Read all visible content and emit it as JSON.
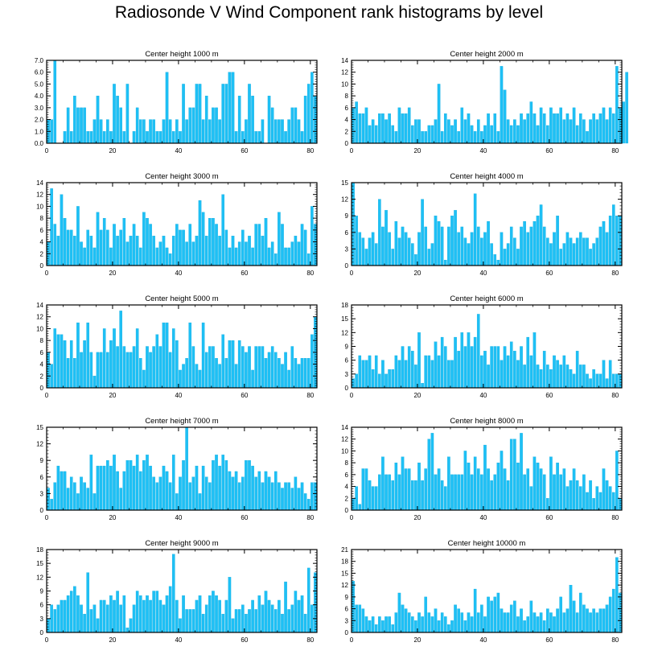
{
  "title": "Radiosonde V Wind Component rank histograms by level",
  "colors": {
    "bar": "#1ec0f5",
    "bar_edge": "#0aa8dc",
    "axis": "#000000"
  },
  "chart_data": [
    {
      "type": "bar",
      "title": "Center height 1000 m",
      "xlim": [
        0,
        82
      ],
      "ylim": [
        0,
        7
      ],
      "xticks": [
        0,
        20,
        40,
        60,
        80
      ],
      "xtick_labels": [
        "0",
        "20",
        "40",
        "60",
        "80"
      ],
      "yticks": [
        0,
        1,
        2,
        3,
        4,
        5,
        6,
        7
      ],
      "ytick_labels": [
        "0.0",
        "1.0",
        "2.0",
        "3.0",
        "4.0",
        "5.0",
        "6.0",
        "7.0"
      ],
      "values": [
        2,
        2,
        7,
        0,
        0,
        1,
        3,
        1,
        4,
        3,
        3,
        3,
        1,
        1,
        2,
        4,
        2,
        1,
        2,
        1,
        5,
        4,
        3,
        1,
        5,
        0,
        1,
        3,
        2,
        2,
        1,
        2,
        2,
        1,
        1,
        2,
        6,
        2,
        1,
        2,
        1,
        5,
        2,
        3,
        3,
        5,
        5,
        2,
        4,
        2,
        3,
        3,
        2,
        5,
        5,
        6,
        6,
        1,
        4,
        1,
        2,
        5,
        4,
        1,
        1,
        2,
        0,
        4,
        3,
        2,
        2,
        2,
        1,
        2,
        3,
        3,
        2,
        1,
        4,
        5,
        6,
        4
      ]
    },
    {
      "type": "bar",
      "title": "Center height 2000 m",
      "xlim": [
        0,
        82
      ],
      "ylim": [
        0,
        14
      ],
      "xticks": [
        0,
        20,
        40,
        60,
        80
      ],
      "xtick_labels": [
        "0",
        "20",
        "40",
        "60",
        "80"
      ],
      "yticks": [
        0,
        2,
        4,
        6,
        8,
        10,
        12,
        14
      ],
      "ytick_labels": [
        "0",
        "2",
        "4",
        "6",
        "8",
        "10",
        "12",
        "14"
      ],
      "values": [
        6,
        7,
        5,
        5,
        6,
        3,
        4,
        3,
        5,
        5,
        4,
        5,
        3,
        2,
        6,
        5,
        5,
        6,
        3,
        4,
        4,
        2,
        2,
        3,
        3,
        4,
        10,
        2,
        5,
        4,
        3,
        4,
        2,
        6,
        4,
        5,
        3,
        2,
        4,
        2,
        3,
        5,
        3,
        5,
        2,
        13,
        9,
        4,
        3,
        4,
        3,
        5,
        4,
        5,
        7,
        5,
        3,
        6,
        5,
        3,
        6,
        5,
        5,
        6,
        4,
        5,
        4,
        6,
        3,
        5,
        4,
        2,
        4,
        5,
        4,
        5,
        6,
        4,
        6,
        5,
        13,
        6,
        7,
        12
      ]
    },
    {
      "type": "bar",
      "title": "Center height 3000 m",
      "xlim": [
        0,
        82
      ],
      "ylim": [
        0,
        14
      ],
      "xticks": [
        0,
        20,
        40,
        60,
        80
      ],
      "xtick_labels": [
        "0",
        "20",
        "40",
        "60",
        "80"
      ],
      "yticks": [
        0,
        2,
        4,
        6,
        8,
        10,
        12,
        14
      ],
      "ytick_labels": [
        "0",
        "2",
        "4",
        "6",
        "8",
        "10",
        "12",
        "14"
      ],
      "values": [
        4,
        13,
        7,
        5,
        12,
        8,
        6,
        6,
        5,
        10,
        4,
        3,
        6,
        5,
        3,
        9,
        6,
        8,
        6,
        3,
        7,
        5,
        6,
        8,
        4,
        5,
        7,
        5,
        3,
        9,
        8,
        7,
        5,
        3,
        4,
        5,
        3,
        2,
        5,
        7,
        6,
        6,
        4,
        7,
        4,
        5,
        11,
        9,
        5,
        8,
        8,
        7,
        5,
        12,
        6,
        3,
        5,
        3,
        4,
        6,
        4,
        5,
        3,
        7,
        7,
        5,
        8,
        3,
        4,
        2,
        9,
        7,
        3,
        3,
        4,
        5,
        4,
        7,
        6,
        2,
        10,
        7
      ]
    },
    {
      "type": "bar",
      "title": "Center height 4000 m",
      "xlim": [
        0,
        82
      ],
      "ylim": [
        0,
        15
      ],
      "xticks": [
        0,
        20,
        40,
        60,
        80
      ],
      "xtick_labels": [
        "0",
        "20",
        "40",
        "60",
        "80"
      ],
      "yticks": [
        0,
        3,
        6,
        9,
        12,
        15
      ],
      "ytick_labels": [
        "0",
        "3",
        "6",
        "9",
        "12",
        "15"
      ],
      "values": [
        15,
        9,
        6,
        5,
        3,
        5,
        6,
        4,
        12,
        7,
        10,
        6,
        3,
        8,
        5,
        7,
        6,
        5,
        4,
        2,
        6,
        12,
        7,
        3,
        4,
        9,
        8,
        7,
        1,
        7,
        9,
        10,
        6,
        7,
        5,
        4,
        6,
        13,
        7,
        5,
        6,
        8,
        4,
        2,
        1,
        6,
        3,
        4,
        7,
        5,
        3,
        7,
        8,
        6,
        7,
        8,
        9,
        11,
        7,
        5,
        4,
        6,
        9,
        3,
        4,
        6,
        5,
        4,
        5,
        6,
        5,
        5,
        3,
        4,
        5,
        7,
        8,
        6,
        9,
        11,
        9,
        9
      ]
    },
    {
      "type": "bar",
      "title": "Center height 5000 m",
      "xlim": [
        0,
        82
      ],
      "ylim": [
        0,
        14
      ],
      "xticks": [
        0,
        20,
        40,
        60,
        80
      ],
      "xtick_labels": [
        "0",
        "20",
        "40",
        "60",
        "80"
      ],
      "yticks": [
        0,
        2,
        4,
        6,
        8,
        10,
        12,
        14
      ],
      "ytick_labels": [
        "0",
        "2",
        "4",
        "6",
        "8",
        "10",
        "12",
        "14"
      ],
      "values": [
        6,
        4,
        10,
        9,
        9,
        8,
        5,
        8,
        5,
        11,
        6,
        8,
        11,
        6,
        2,
        6,
        6,
        10,
        6,
        8,
        10,
        7,
        13,
        7,
        6,
        6,
        7,
        10,
        5,
        3,
        7,
        6,
        7,
        9,
        7,
        11,
        11,
        6,
        10,
        8,
        3,
        4,
        5,
        11,
        7,
        4,
        3,
        11,
        6,
        7,
        7,
        5,
        4,
        9,
        5,
        8,
        8,
        4,
        8,
        7,
        6,
        7,
        3,
        7,
        7,
        7,
        5,
        6,
        7,
        6,
        5,
        4,
        6,
        3,
        7,
        5,
        4,
        5,
        5,
        5,
        9,
        12
      ]
    },
    {
      "type": "bar",
      "title": "Center height 6000 m",
      "xlim": [
        0,
        82
      ],
      "ylim": [
        0,
        18
      ],
      "xticks": [
        0,
        20,
        40,
        60,
        80
      ],
      "xtick_labels": [
        "0",
        "20",
        "40",
        "60",
        "80"
      ],
      "yticks": [
        0,
        3,
        6,
        9,
        12,
        15,
        18
      ],
      "ytick_labels": [
        "0",
        "3",
        "6",
        "9",
        "12",
        "15",
        "18"
      ],
      "values": [
        2,
        3,
        7,
        6,
        6,
        7,
        4,
        7,
        3,
        6,
        3,
        4,
        4,
        7,
        6,
        9,
        6,
        9,
        8,
        5,
        12,
        1,
        7,
        7,
        6,
        10,
        7,
        11,
        9,
        6,
        6,
        11,
        8,
        12,
        9,
        12,
        9,
        11,
        16,
        7,
        8,
        5,
        9,
        9,
        9,
        6,
        9,
        7,
        10,
        8,
        6,
        9,
        5,
        11,
        7,
        12,
        5,
        4,
        8,
        5,
        4,
        7,
        6,
        5,
        7,
        5,
        4,
        3,
        8,
        5,
        5,
        3,
        2,
        4,
        3,
        3,
        6,
        2,
        6,
        3,
        3,
        3
      ]
    },
    {
      "type": "bar",
      "title": "Center height 7000 m",
      "xlim": [
        0,
        82
      ],
      "ylim": [
        0,
        15
      ],
      "xticks": [
        0,
        20,
        40,
        60,
        80
      ],
      "xtick_labels": [
        "0",
        "20",
        "40",
        "60",
        "80"
      ],
      "yticks": [
        0,
        3,
        6,
        9,
        12,
        15
      ],
      "ytick_labels": [
        "0",
        "3",
        "6",
        "9",
        "12",
        "15"
      ],
      "values": [
        4,
        2,
        5,
        8,
        7,
        7,
        4,
        6,
        5,
        3,
        6,
        5,
        4,
        10,
        3,
        8,
        8,
        8,
        9,
        8,
        10,
        7,
        4,
        7,
        9,
        9,
        8,
        10,
        7,
        9,
        10,
        8,
        6,
        5,
        6,
        8,
        7,
        5,
        10,
        3,
        6,
        9,
        15,
        5,
        6,
        8,
        3,
        8,
        6,
        5,
        9,
        10,
        8,
        10,
        9,
        7,
        6,
        7,
        5,
        6,
        9,
        9,
        8,
        6,
        7,
        5,
        7,
        6,
        5,
        7,
        5,
        4,
        5,
        5,
        4,
        6,
        4,
        5,
        3,
        2,
        5,
        5
      ]
    },
    {
      "type": "bar",
      "title": "Center height 8000 m",
      "xlim": [
        0,
        82
      ],
      "ylim": [
        0,
        14
      ],
      "xticks": [
        0,
        20,
        40,
        60,
        80
      ],
      "xtick_labels": [
        "0",
        "20",
        "40",
        "60",
        "80"
      ],
      "yticks": [
        0,
        2,
        4,
        6,
        8,
        10,
        12,
        14
      ],
      "ytick_labels": [
        "0",
        "2",
        "4",
        "6",
        "8",
        "10",
        "12",
        "14"
      ],
      "values": [
        2,
        4,
        1,
        7,
        7,
        5,
        4,
        4,
        6,
        9,
        6,
        6,
        5,
        8,
        6,
        9,
        7,
        7,
        5,
        5,
        8,
        5,
        7,
        12,
        13,
        6,
        7,
        5,
        4,
        9,
        6,
        6,
        6,
        6,
        10,
        8,
        6,
        9,
        7,
        6,
        11,
        7,
        5,
        6,
        8,
        10,
        7,
        5,
        12,
        12,
        8,
        13,
        6,
        7,
        4,
        9,
        8,
        7,
        6,
        2,
        9,
        6,
        8,
        6,
        7,
        4,
        5,
        7,
        5,
        4,
        6,
        3,
        5,
        2,
        4,
        3,
        7,
        5,
        4,
        3,
        10,
        2
      ]
    },
    {
      "type": "bar",
      "title": "Center height 9000 m",
      "xlim": [
        0,
        82
      ],
      "ylim": [
        0,
        18
      ],
      "xticks": [
        0,
        20,
        40,
        60,
        80
      ],
      "xtick_labels": [
        "0",
        "20",
        "40",
        "60",
        "80"
      ],
      "yticks": [
        0,
        3,
        6,
        9,
        12,
        15,
        18
      ],
      "ytick_labels": [
        "0",
        "3",
        "6",
        "9",
        "12",
        "15",
        "18"
      ],
      "values": [
        3,
        6,
        5,
        6,
        7,
        7,
        8,
        9,
        10,
        8,
        6,
        4,
        13,
        5,
        6,
        3,
        7,
        7,
        6,
        8,
        7,
        9,
        6,
        8,
        1,
        3,
        6,
        9,
        8,
        7,
        8,
        7,
        9,
        9,
        7,
        6,
        8,
        10,
        17,
        7,
        3,
        8,
        5,
        5,
        5,
        7,
        8,
        4,
        6,
        8,
        9,
        8,
        7,
        4,
        7,
        12,
        3,
        5,
        5,
        6,
        4,
        5,
        7,
        5,
        8,
        6,
        9,
        7,
        6,
        5,
        7,
        4,
        11,
        5,
        6,
        9,
        7,
        8,
        4,
        14,
        6,
        13
      ]
    },
    {
      "type": "bar",
      "title": "Center height 10000 m",
      "xlim": [
        0,
        82
      ],
      "ylim": [
        0,
        21
      ],
      "xticks": [
        0,
        20,
        40,
        60,
        80
      ],
      "xtick_labels": [
        "0",
        "20",
        "40",
        "60",
        "80"
      ],
      "yticks": [
        0,
        3,
        6,
        9,
        12,
        15,
        18,
        21
      ],
      "ytick_labels": [
        "0",
        "3",
        "6",
        "9",
        "12",
        "15",
        "18",
        "21"
      ],
      "values": [
        13,
        7,
        7,
        6,
        4,
        3,
        4,
        2,
        4,
        3,
        4,
        4,
        2,
        5,
        10,
        7,
        6,
        5,
        4,
        3,
        5,
        4,
        9,
        5,
        4,
        6,
        3,
        5,
        4,
        2,
        3,
        7,
        6,
        5,
        3,
        5,
        4,
        11,
        5,
        7,
        4,
        9,
        8,
        9,
        10,
        6,
        5,
        5,
        7,
        8,
        4,
        6,
        3,
        4,
        8,
        5,
        4,
        5,
        3,
        6,
        5,
        4,
        6,
        9,
        5,
        6,
        12,
        8,
        5,
        10,
        7,
        6,
        5,
        6,
        5,
        6,
        6,
        7,
        9,
        11,
        19,
        10
      ]
    }
  ]
}
